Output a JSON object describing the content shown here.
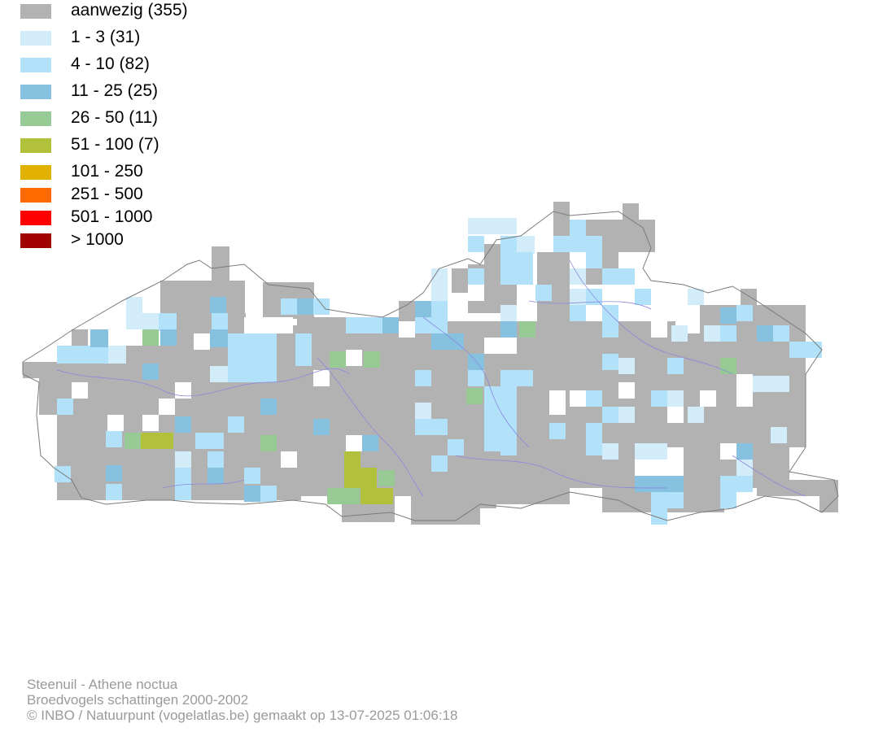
{
  "legend": {
    "items": [
      {
        "label": "aanwezig (355)",
        "color": "#b2b2b2"
      },
      {
        "label": "1 - 3 (31)",
        "color": "#d3ecfa"
      },
      {
        "label": "4 - 10 (82)",
        "color": "#b2e2f9"
      },
      {
        "label": "11 - 25 (25)",
        "color": "#86c1e0"
      },
      {
        "label": "26 - 50 (11)",
        "color": "#97ca94"
      },
      {
        "label": "51 - 100 (7)",
        "color": "#b2c13c"
      },
      {
        "label": "101 - 250",
        "color": "#e1b000"
      },
      {
        "label": "251 - 500",
        "color": "#ff6a00"
      },
      {
        "label": "501 - 1000",
        "color": "#ff0000"
      },
      {
        "label": "> 1000",
        "color": "#a00000"
      }
    ]
  },
  "map": {
    "region_outline_color": "#7a7a7a",
    "river_color": "#8888dd"
  },
  "footer": {
    "species": "Steenuil - Athene noctua",
    "dataset": "Broedvogels schattingen 2000-2002",
    "credit": "© INBO / Natuurpunt (vogelatlas.be) gemaakt op 13-07-2025 01:06:18"
  }
}
